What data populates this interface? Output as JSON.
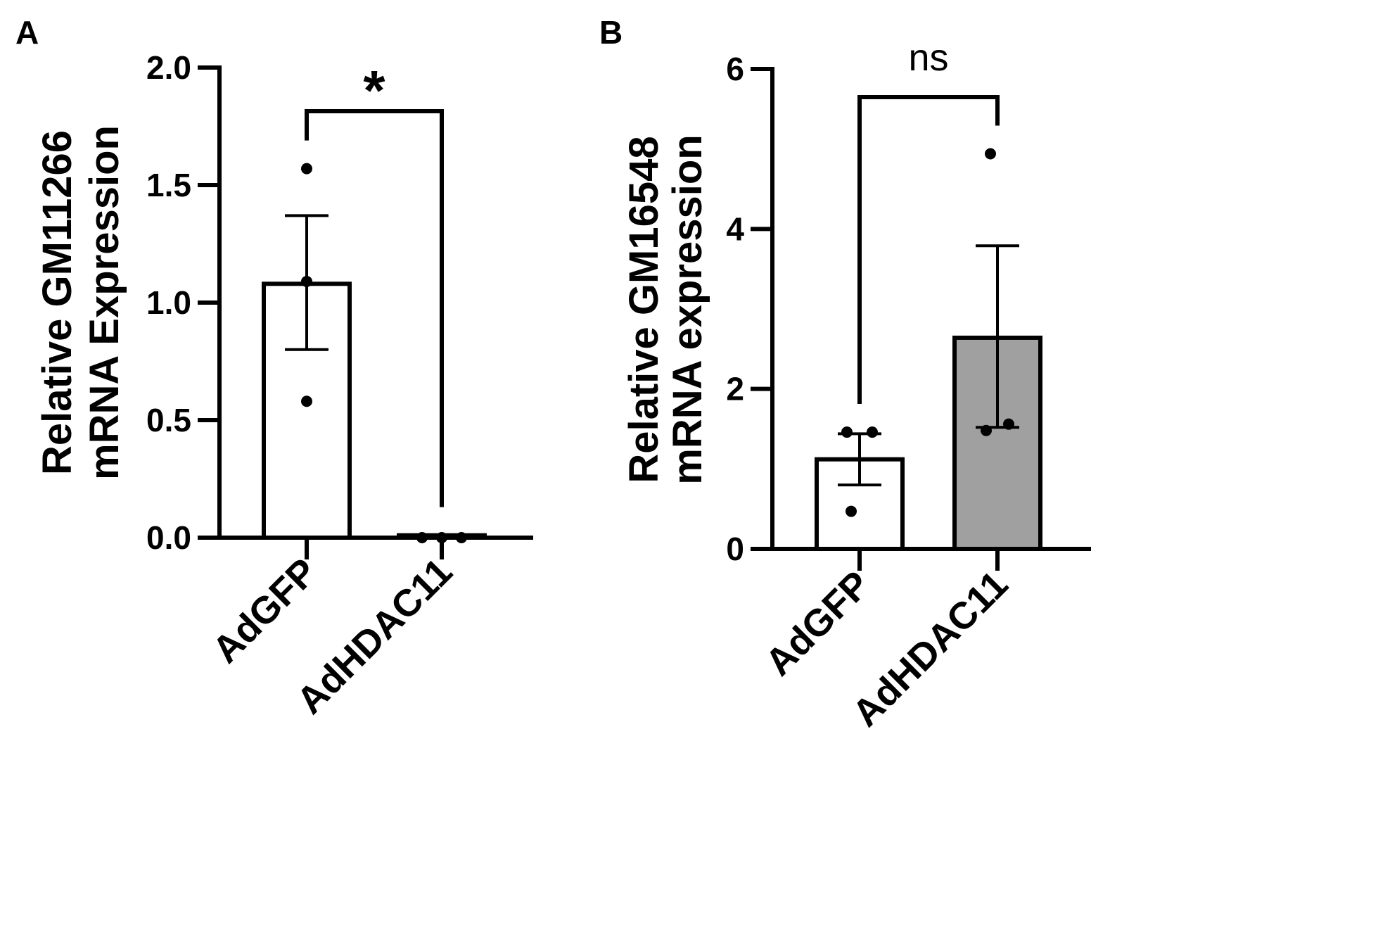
{
  "chart_data": [
    {
      "type": "bar",
      "panel": "A",
      "categories": [
        "AdGFP",
        "AdHDAC11"
      ],
      "values": [
        1.08,
        0.01
      ],
      "error_upper": [
        1.37,
        0.01
      ],
      "error_lower": [
        0.8,
        0.01
      ],
      "points": [
        [
          1.57,
          1.09,
          0.58
        ],
        [
          0.0,
          0.0,
          0.0
        ]
      ],
      "bar_colors": [
        "#ffffff",
        "#ffffff"
      ],
      "ylabel": [
        "Relative GM11266",
        "mRNA Expression"
      ],
      "ylim": [
        0,
        2.0
      ],
      "yticks": [
        "0.0",
        "0.5",
        "1.0",
        "1.5",
        "2.0"
      ],
      "significance": {
        "label": "*",
        "from": 0,
        "to": 1
      },
      "grid": false
    },
    {
      "type": "bar",
      "panel": "B",
      "categories": [
        "AdGFP",
        "AdHDAC11"
      ],
      "values": [
        1.12,
        2.64
      ],
      "error_upper": [
        1.44,
        3.79
      ],
      "error_lower": [
        0.8,
        1.52
      ],
      "points": [
        [
          1.46,
          1.46,
          0.47
        ],
        [
          1.48,
          1.56,
          4.94
        ]
      ],
      "bar_colors": [
        "#ffffff",
        "#a0a0a0"
      ],
      "ylabel": [
        "Relative GM16548",
        "mRNA expression"
      ],
      "ylim": [
        0,
        6
      ],
      "yticks": [
        "0",
        "2",
        "4",
        "6"
      ],
      "significance": {
        "label": "ns",
        "from": 0,
        "to": 1
      },
      "grid": false
    }
  ]
}
